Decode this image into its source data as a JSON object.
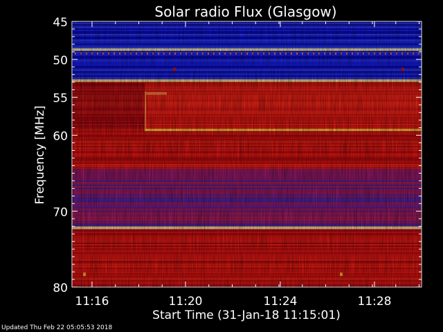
{
  "chart_data": {
    "type": "heatmap",
    "title": "Solar radio Flux (Glasgow)",
    "ylabel": "Frequency [MHz]",
    "xlabel": "Start Time (31-Jan-18 11:15:01)",
    "ylim": [
      45,
      80
    ],
    "y_reversed": true,
    "y_ticks": [
      {
        "value": 45,
        "label": "45"
      },
      {
        "value": 50,
        "label": "50"
      },
      {
        "value": 55,
        "label": "55"
      },
      {
        "value": 60,
        "label": "60"
      },
      {
        "value": 70,
        "label": "70"
      },
      {
        "value": 80,
        "label": "80"
      }
    ],
    "x_ticks": [
      {
        "label": "11:16"
      },
      {
        "label": "11:20"
      },
      {
        "label": "11:24"
      },
      {
        "label": "11:28"
      }
    ],
    "colors": {
      "low": "#1010c8",
      "mid": "#c81010",
      "high": "#ffd040",
      "background": "#000000"
    },
    "bands_mhz": [
      {
        "from": 45,
        "to": 48.5,
        "level": "low"
      },
      {
        "from": 48.5,
        "to": 48.9,
        "level": "high"
      },
      {
        "from": 48.9,
        "to": 52.6,
        "level": "low"
      },
      {
        "from": 52.6,
        "to": 53.0,
        "level": "high"
      },
      {
        "from": 53.0,
        "to": 64.0,
        "level": "mid"
      },
      {
        "from": 64.0,
        "to": 64.4,
        "level": "mid-bright"
      },
      {
        "from": 64.4,
        "to": 72.0,
        "level": "mixed"
      },
      {
        "from": 72.0,
        "to": 72.4,
        "level": "high"
      },
      {
        "from": 72.4,
        "to": 80,
        "level": "mid"
      }
    ],
    "features": [
      {
        "name": "type-III-like step",
        "freq_from": 54.2,
        "freq_to": 59.4,
        "time": "11:18:20"
      },
      {
        "name": "horizontal line",
        "freq": 59.3,
        "time_from": "11:18:20",
        "time_to": "11:30"
      }
    ]
  },
  "footer": {
    "updated": "Updated Thu Feb 22 05:05:53 2018"
  }
}
